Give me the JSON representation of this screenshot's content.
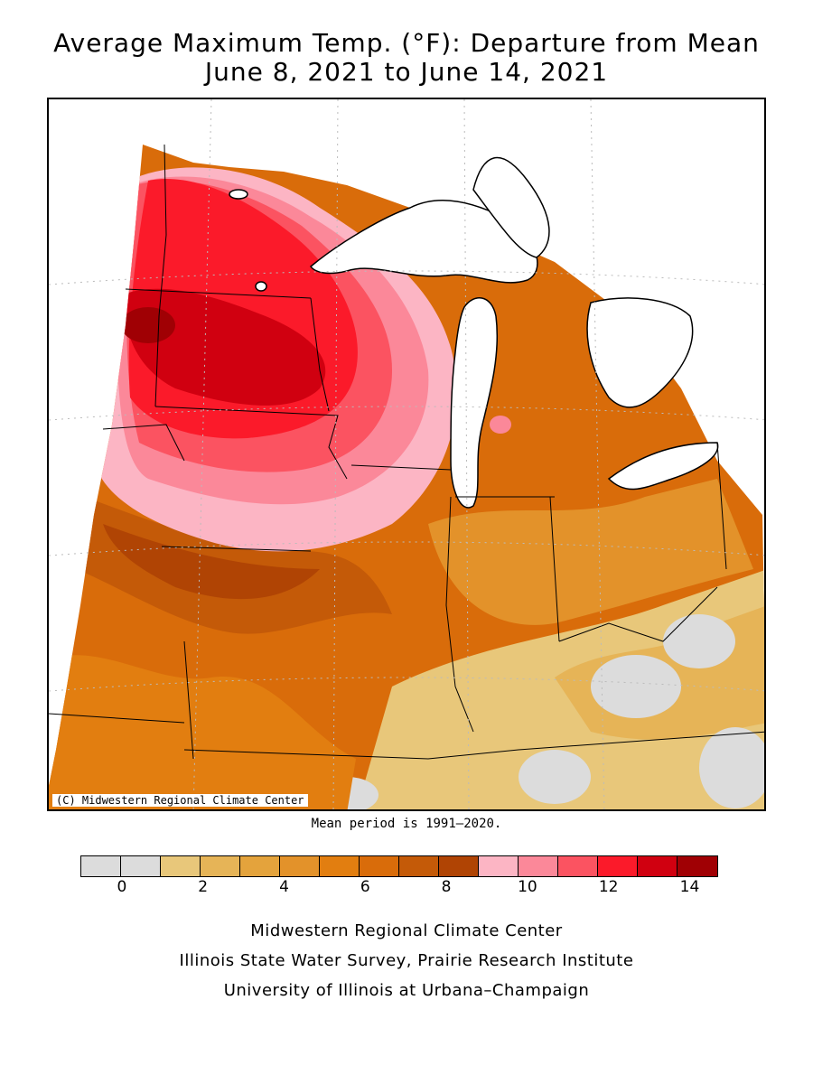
{
  "title_line1": "Average Maximum Temp. (°F): Departure from Mean",
  "title_line2": "June 8, 2021 to June 14, 2021",
  "map": {
    "copyright": "(C) Midwestern Regional Climate Center",
    "background_color": "#ffffff",
    "water_color": "#ffffff",
    "outside_color": "#ffffff"
  },
  "mean_period": "Mean period is 1991–2020.",
  "legend": {
    "unit": "°F",
    "bins": [
      {
        "min": -1,
        "max": 0,
        "color": "#dcdcdc"
      },
      {
        "min": 0,
        "max": 1,
        "color": "#dcdcdc"
      },
      {
        "min": 1,
        "max": 2,
        "color": "#e8c77a"
      },
      {
        "min": 2,
        "max": 3,
        "color": "#e6b457"
      },
      {
        "min": 3,
        "max": 4,
        "color": "#e4a33c"
      },
      {
        "min": 4,
        "max": 5,
        "color": "#e3922a"
      },
      {
        "min": 5,
        "max": 6,
        "color": "#e27e10"
      },
      {
        "min": 6,
        "max": 7,
        "color": "#d96c0a"
      },
      {
        "min": 7,
        "max": 8,
        "color": "#c45a08"
      },
      {
        "min": 8,
        "max": 9,
        "color": "#b04404"
      },
      {
        "min": 9,
        "max": 10,
        "color": "#fcb5c4"
      },
      {
        "min": 10,
        "max": 11,
        "color": "#fb8899"
      },
      {
        "min": 11,
        "max": 12,
        "color": "#fb5361"
      },
      {
        "min": 12,
        "max": 13,
        "color": "#fb1a2a"
      },
      {
        "min": 13,
        "max": 14,
        "color": "#d00010"
      },
      {
        "min": 14,
        "max": 15,
        "color": "#a00004"
      }
    ],
    "tick_labels": [
      "0",
      "2",
      "4",
      "6",
      "8",
      "10",
      "12",
      "14"
    ]
  },
  "credits": [
    "Midwestern Regional Climate Center",
    "Illinois State Water Survey, Prairie Research Institute",
    "University of Illinois at Urbana–Champaign"
  ]
}
